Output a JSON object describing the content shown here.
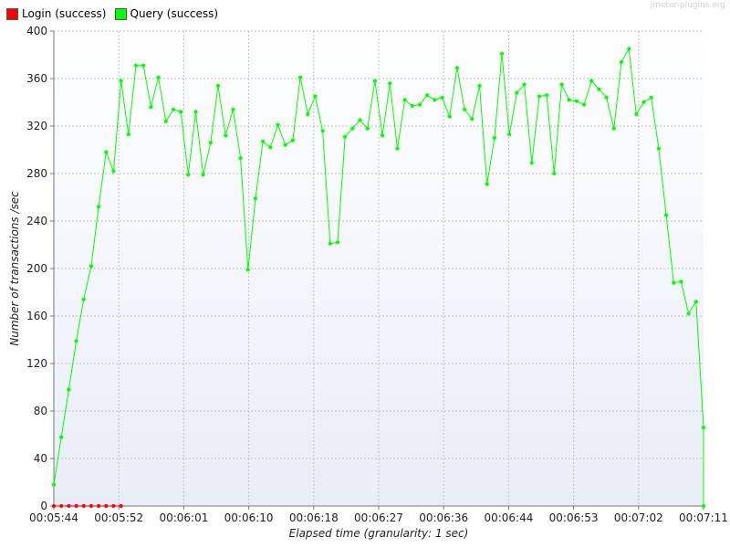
{
  "watermark": "jmeter-plugins.org",
  "chart_data": {
    "type": "line",
    "title": "",
    "xlabel": "Elapsed time (granularity: 1 sec)",
    "ylabel": "Number of transactions /sec",
    "ylim": [
      0,
      400
    ],
    "yticks": [
      0,
      40,
      80,
      120,
      160,
      200,
      240,
      280,
      320,
      360,
      400
    ],
    "xtick_labels": [
      "00:05:44",
      "00:05:52",
      "00:06:01",
      "00:06:10",
      "00:06:18",
      "00:06:27",
      "00:06:36",
      "00:06:44",
      "00:06:53",
      "00:07:02",
      "00:07:11"
    ],
    "x_start_sec": 0,
    "x_end_sec": 87,
    "grid": true,
    "legend_position": "top-left",
    "series": [
      {
        "name": "Login (success)",
        "color": "#ff0000",
        "x": [
          0,
          1,
          2,
          3,
          4,
          5,
          6,
          7,
          8,
          9
        ],
        "values": [
          0,
          0,
          0,
          0,
          0,
          0,
          0,
          0,
          0,
          0
        ]
      },
      {
        "name": "Query (success)",
        "color": "#00ff00",
        "x": [
          0,
          1,
          2,
          3,
          4,
          5,
          6,
          7,
          8,
          9,
          10,
          11,
          12,
          13,
          14,
          15,
          16,
          17,
          18,
          19,
          20,
          21,
          22,
          23,
          24,
          25,
          26,
          27,
          28,
          29,
          30,
          31,
          32,
          33,
          34,
          35,
          36,
          37,
          38,
          39,
          40,
          41,
          42,
          43,
          44,
          45,
          46,
          47,
          48,
          49,
          50,
          51,
          52,
          53,
          54,
          55,
          56,
          57,
          58,
          59,
          60,
          61,
          62,
          63,
          64,
          65,
          66,
          67,
          68,
          69,
          70,
          71,
          72,
          73,
          74,
          75,
          76,
          77,
          78,
          79,
          80,
          81,
          82,
          83,
          84,
          85,
          86,
          87,
          87
        ],
        "values": [
          18,
          58,
          98,
          139,
          174,
          202,
          252,
          298,
          282,
          358,
          313,
          371,
          371,
          336,
          361,
          324,
          334,
          332,
          279,
          332,
          279,
          306,
          354,
          312,
          334,
          293,
          199,
          259,
          307,
          302,
          321,
          304,
          308,
          361,
          330,
          345,
          316,
          221,
          222,
          311,
          318,
          325,
          318,
          358,
          312,
          356,
          301,
          342,
          337,
          338,
          346,
          342,
          344,
          328,
          369,
          334,
          326,
          354,
          271,
          310,
          381,
          313,
          348,
          355,
          289,
          345,
          346,
          280,
          355,
          342,
          341,
          338,
          358,
          351,
          344,
          318,
          374,
          385,
          330,
          340,
          344,
          301,
          245,
          188,
          189,
          162,
          172,
          66,
          0
        ]
      }
    ]
  }
}
